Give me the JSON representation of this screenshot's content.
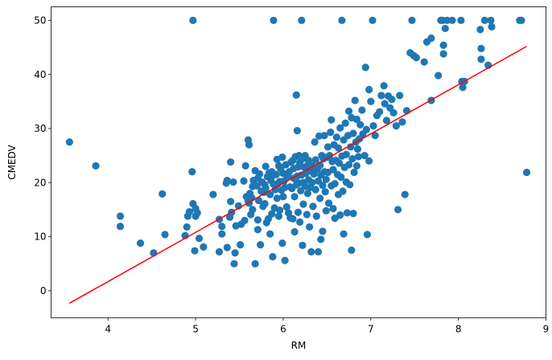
{
  "chart_data": {
    "type": "scatter",
    "title": "",
    "xlabel": "RM",
    "ylabel": "CMEDV",
    "xlim": [
      3.35,
      9.0
    ],
    "ylim": [
      -5.0,
      52.5
    ],
    "xticks": [
      4,
      5,
      6,
      7,
      8,
      9
    ],
    "yticks": [
      0,
      10,
      20,
      30,
      40,
      50
    ],
    "grid": false,
    "point_color": "#1f77b4",
    "line_color": "#ff0000",
    "regression_line": {
      "x": [
        3.56,
        8.78
      ],
      "y": [
        -2.3,
        45.2
      ]
    },
    "points": [
      [
        3.56,
        27.5
      ],
      [
        3.86,
        23.1
      ],
      [
        4.14,
        13.8
      ],
      [
        4.14,
        11.9
      ],
      [
        4.37,
        8.8
      ],
      [
        4.52,
        7.0
      ],
      [
        4.62,
        17.9
      ],
      [
        4.65,
        10.4
      ],
      [
        4.88,
        10.2
      ],
      [
        4.9,
        11.8
      ],
      [
        4.91,
        13.8
      ],
      [
        4.93,
        14.6
      ],
      [
        4.96,
        22.0
      ],
      [
        4.97,
        50.0
      ],
      [
        4.97,
        16.1
      ],
      [
        4.99,
        7.4
      ],
      [
        5.0,
        13.8
      ],
      [
        5.0,
        15.2
      ],
      [
        5.02,
        14.4
      ],
      [
        5.04,
        9.7
      ],
      [
        5.09,
        8.1
      ],
      [
        5.2,
        17.8
      ],
      [
        5.27,
        13.2
      ],
      [
        5.27,
        7.2
      ],
      [
        5.3,
        11.9
      ],
      [
        5.3,
        10.5
      ],
      [
        5.35,
        19.9
      ],
      [
        5.36,
        20.4
      ],
      [
        5.36,
        8.0
      ],
      [
        5.39,
        13.6
      ],
      [
        5.4,
        23.8
      ],
      [
        5.4,
        16.5
      ],
      [
        5.41,
        14.5
      ],
      [
        5.43,
        20.1
      ],
      [
        5.44,
        5.0
      ],
      [
        5.45,
        7.0
      ],
      [
        5.46,
        12.0
      ],
      [
        5.49,
        15.7
      ],
      [
        5.51,
        8.5
      ],
      [
        5.52,
        12.3
      ],
      [
        5.55,
        20.3
      ],
      [
        5.56,
        13.0
      ],
      [
        5.57,
        23.1
      ],
      [
        5.58,
        17.4
      ],
      [
        5.6,
        16.6
      ],
      [
        5.6,
        27.9
      ],
      [
        5.61,
        27.0
      ],
      [
        5.61,
        16.2
      ],
      [
        5.62,
        18.0
      ],
      [
        5.63,
        14.1
      ],
      [
        5.64,
        17.2
      ],
      [
        5.65,
        15.0
      ],
      [
        5.65,
        19.3
      ],
      [
        5.66,
        20.4
      ],
      [
        5.68,
        22.2
      ],
      [
        5.68,
        5.0
      ],
      [
        5.7,
        19.4
      ],
      [
        5.71,
        20.8
      ],
      [
        5.71,
        11.3
      ],
      [
        5.71,
        13.1
      ],
      [
        5.72,
        16.7
      ],
      [
        5.73,
        21.6
      ],
      [
        5.74,
        8.5
      ],
      [
        5.75,
        18.4
      ],
      [
        5.76,
        20.1
      ],
      [
        5.77,
        15.6
      ],
      [
        5.78,
        18.2
      ],
      [
        5.79,
        16.1
      ],
      [
        5.79,
        19.6
      ],
      [
        5.8,
        19.0
      ],
      [
        5.8,
        23.0
      ],
      [
        5.81,
        12.6
      ],
      [
        5.82,
        21.1
      ],
      [
        5.83,
        13.3
      ],
      [
        5.84,
        21.8
      ],
      [
        5.85,
        17.8
      ],
      [
        5.85,
        10.5
      ],
      [
        5.86,
        20.4
      ],
      [
        5.87,
        14.2
      ],
      [
        5.87,
        22.0
      ],
      [
        5.88,
        6.3
      ],
      [
        5.89,
        50.0
      ],
      [
        5.89,
        21.4
      ],
      [
        5.89,
        19.7
      ],
      [
        5.9,
        15.3
      ],
      [
        5.91,
        18.7
      ],
      [
        5.92,
        21.5
      ],
      [
        5.93,
        17.1
      ],
      [
        5.93,
        24.3
      ],
      [
        5.94,
        19.8
      ],
      [
        5.95,
        13.8
      ],
      [
        5.95,
        23.1
      ],
      [
        5.96,
        20.2
      ],
      [
        5.96,
        14.9
      ],
      [
        5.97,
        22.6
      ],
      [
        5.98,
        18.6
      ],
      [
        5.99,
        8.8
      ],
      [
        5.99,
        24.7
      ],
      [
        6.0,
        21.7
      ],
      [
        6.0,
        17.4
      ],
      [
        6.01,
        20.3
      ],
      [
        6.02,
        5.6
      ],
      [
        6.02,
        19.1
      ],
      [
        6.03,
        23.3
      ],
      [
        6.04,
        15.5
      ],
      [
        6.05,
        21.2
      ],
      [
        6.06,
        14.4
      ],
      [
        6.07,
        22.0
      ],
      [
        6.08,
        19.2
      ],
      [
        6.08,
        13.5
      ],
      [
        6.09,
        23.8
      ],
      [
        6.1,
        18.9
      ],
      [
        6.11,
        24.1
      ],
      [
        6.11,
        13.3
      ],
      [
        6.12,
        20.8
      ],
      [
        6.12,
        22.6
      ],
      [
        6.13,
        17.4
      ],
      [
        6.13,
        10.9
      ],
      [
        6.14,
        24.8
      ],
      [
        6.15,
        19.6
      ],
      [
        6.15,
        36.2
      ],
      [
        6.16,
        21.2
      ],
      [
        6.16,
        29.6
      ],
      [
        6.17,
        14.5
      ],
      [
        6.17,
        22.9
      ],
      [
        6.18,
        19.9
      ],
      [
        6.18,
        25.0
      ],
      [
        6.19,
        12.7
      ],
      [
        6.19,
        23.7
      ],
      [
        6.2,
        18.5
      ],
      [
        6.21,
        21.4
      ],
      [
        6.21,
        50.0
      ],
      [
        6.22,
        8.4
      ],
      [
        6.22,
        24.4
      ],
      [
        6.23,
        20.0
      ],
      [
        6.23,
        16.0
      ],
      [
        6.24,
        22.8
      ],
      [
        6.25,
        19.3
      ],
      [
        6.25,
        25.0
      ],
      [
        6.26,
        21.7
      ],
      [
        6.27,
        14.1
      ],
      [
        6.27,
        23.1
      ],
      [
        6.28,
        18.0
      ],
      [
        6.29,
        20.5
      ],
      [
        6.29,
        24.1
      ],
      [
        6.3,
        11.8
      ],
      [
        6.31,
        22.2
      ],
      [
        6.31,
        19.1
      ],
      [
        6.32,
        7.2
      ],
      [
        6.33,
        23.1
      ],
      [
        6.33,
        20.0
      ],
      [
        6.34,
        15.6
      ],
      [
        6.35,
        21.6
      ],
      [
        6.36,
        27.5
      ],
      [
        6.37,
        18.7
      ],
      [
        6.37,
        24.2
      ],
      [
        6.38,
        13.8
      ],
      [
        6.39,
        22.5
      ],
      [
        6.4,
        7.2
      ],
      [
        6.4,
        20.3
      ],
      [
        6.41,
        28.6
      ],
      [
        6.42,
        17.1
      ],
      [
        6.42,
        23.2
      ],
      [
        6.43,
        9.5
      ],
      [
        6.43,
        21.4
      ],
      [
        6.44,
        25.0
      ],
      [
        6.45,
        19.5
      ],
      [
        6.45,
        11.0
      ],
      [
        6.46,
        24.4
      ],
      [
        6.47,
        22.0
      ],
      [
        6.47,
        28.7
      ],
      [
        6.48,
        18.3
      ],
      [
        6.49,
        20.6
      ],
      [
        6.49,
        14.8
      ],
      [
        6.5,
        24.7
      ],
      [
        6.51,
        26.6
      ],
      [
        6.51,
        21.9
      ],
      [
        6.52,
        16.2
      ],
      [
        6.53,
        25.0
      ],
      [
        6.54,
        29.3
      ],
      [
        6.55,
        19.4
      ],
      [
        6.55,
        31.6
      ],
      [
        6.56,
        23.9
      ],
      [
        6.57,
        15.2
      ],
      [
        6.57,
        22.4
      ],
      [
        6.58,
        27.0
      ],
      [
        6.59,
        19.8
      ],
      [
        6.59,
        13.4
      ],
      [
        6.6,
        24.1
      ],
      [
        6.61,
        28.4
      ],
      [
        6.62,
        21.5
      ],
      [
        6.63,
        17.8
      ],
      [
        6.63,
        26.4
      ],
      [
        6.64,
        23.6
      ],
      [
        6.65,
        14.0
      ],
      [
        6.65,
        30.1
      ],
      [
        6.66,
        21.0
      ],
      [
        6.67,
        24.9
      ],
      [
        6.67,
        50.0
      ],
      [
        6.68,
        18.4
      ],
      [
        6.69,
        27.9
      ],
      [
        6.69,
        10.5
      ],
      [
        6.7,
        22.8
      ],
      [
        6.71,
        31.0
      ],
      [
        6.72,
        20.1
      ],
      [
        6.72,
        25.2
      ],
      [
        6.73,
        14.4
      ],
      [
        6.74,
        28.7
      ],
      [
        6.75,
        23.3
      ],
      [
        6.75,
        33.2
      ],
      [
        6.76,
        19.6
      ],
      [
        6.77,
        26.6
      ],
      [
        6.78,
        7.5
      ],
      [
        6.78,
        32.0
      ],
      [
        6.79,
        24.4
      ],
      [
        6.8,
        29.1
      ],
      [
        6.8,
        14.3
      ],
      [
        6.81,
        21.9
      ],
      [
        6.82,
        35.2
      ],
      [
        6.83,
        27.5
      ],
      [
        6.84,
        23.1
      ],
      [
        6.84,
        31.7
      ],
      [
        6.85,
        26.2
      ],
      [
        6.86,
        24.8
      ],
      [
        6.87,
        28.1
      ],
      [
        6.88,
        30.7
      ],
      [
        6.9,
        33.4
      ],
      [
        6.91,
        29.0
      ],
      [
        6.93,
        25.0
      ],
      [
        6.94,
        41.3
      ],
      [
        6.95,
        29.8
      ],
      [
        6.96,
        10.4
      ],
      [
        6.98,
        24.0
      ],
      [
        6.98,
        37.2
      ],
      [
        7.0,
        35.0
      ],
      [
        7.02,
        50.0
      ],
      [
        7.03,
        30.5
      ],
      [
        7.05,
        28.7
      ],
      [
        7.07,
        32.4
      ],
      [
        7.1,
        33.1
      ],
      [
        7.12,
        36.1
      ],
      [
        7.15,
        37.9
      ],
      [
        7.16,
        34.6
      ],
      [
        7.18,
        31.5
      ],
      [
        7.2,
        36.0
      ],
      [
        7.22,
        33.8
      ],
      [
        7.24,
        35.4
      ],
      [
        7.26,
        32.9
      ],
      [
        7.29,
        30.5
      ],
      [
        7.31,
        15.0
      ],
      [
        7.33,
        36.1
      ],
      [
        7.36,
        31.2
      ],
      [
        7.39,
        17.8
      ],
      [
        7.41,
        33.3
      ],
      [
        7.45,
        44.0
      ],
      [
        7.47,
        50.0
      ],
      [
        7.49,
        43.5
      ],
      [
        7.52,
        43.1
      ],
      [
        7.61,
        42.3
      ],
      [
        7.64,
        46.0
      ],
      [
        7.69,
        46.7
      ],
      [
        7.69,
        35.2
      ],
      [
        7.77,
        39.8
      ],
      [
        7.8,
        50.0
      ],
      [
        7.82,
        50.0
      ],
      [
        7.83,
        43.8
      ],
      [
        7.83,
        45.4
      ],
      [
        7.85,
        48.5
      ],
      [
        7.87,
        50.0
      ],
      [
        7.93,
        50.0
      ],
      [
        8.03,
        50.0
      ],
      [
        8.04,
        38.7
      ],
      [
        8.05,
        37.6
      ],
      [
        8.07,
        38.7
      ],
      [
        8.25,
        48.3
      ],
      [
        8.26,
        42.8
      ],
      [
        8.26,
        44.8
      ],
      [
        8.3,
        50.0
      ],
      [
        8.34,
        41.7
      ],
      [
        8.37,
        50.0
      ],
      [
        8.38,
        48.8
      ],
      [
        8.7,
        50.0
      ],
      [
        8.72,
        50.0
      ],
      [
        8.78,
        21.9
      ]
    ]
  }
}
